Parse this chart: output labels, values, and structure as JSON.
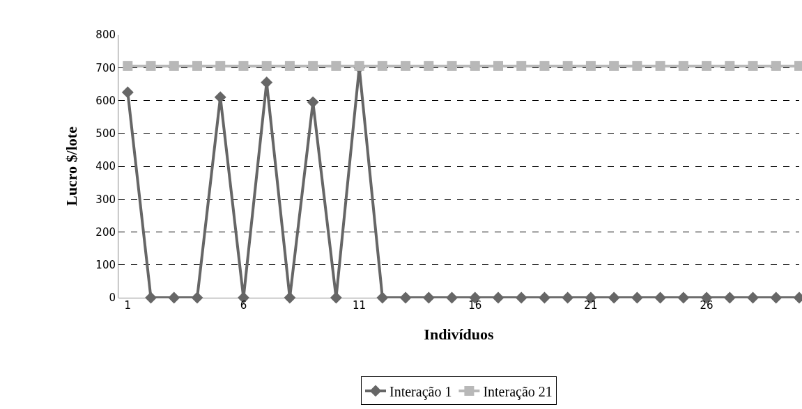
{
  "chart_data": {
    "type": "line",
    "xlabel": "Indivíduos",
    "ylabel": "Lucro $/lote",
    "categories": [
      "1",
      null,
      null,
      null,
      null,
      "6",
      null,
      null,
      null,
      null,
      "11",
      null,
      null,
      null,
      null,
      "16",
      null,
      null,
      null,
      null,
      "21",
      null,
      null,
      null,
      null,
      "26",
      null,
      null,
      null,
      null
    ],
    "series": [
      {
        "name": "Interação 1",
        "color": "#666666",
        "marker": "diamond",
        "values": [
          625,
          0,
          0,
          0,
          610,
          0,
          655,
          0,
          595,
          0,
          700,
          0,
          0,
          0,
          0,
          0,
          0,
          0,
          0,
          0,
          0,
          0,
          0,
          0,
          0,
          0,
          0,
          0,
          0,
          0
        ]
      },
      {
        "name": "Interação 21",
        "color": "#b8b8b8",
        "marker": "square",
        "values": [
          705,
          705,
          705,
          705,
          705,
          705,
          705,
          705,
          705,
          705,
          705,
          705,
          705,
          705,
          705,
          705,
          705,
          705,
          705,
          705,
          705,
          705,
          705,
          705,
          705,
          705,
          705,
          705,
          705,
          705
        ]
      }
    ],
    "ylim": [
      0,
      800
    ],
    "yticks": [
      0,
      100,
      200,
      300,
      400,
      500,
      600,
      700,
      800
    ],
    "grid": "y",
    "legend": "bottom",
    "line_style": "solid"
  }
}
